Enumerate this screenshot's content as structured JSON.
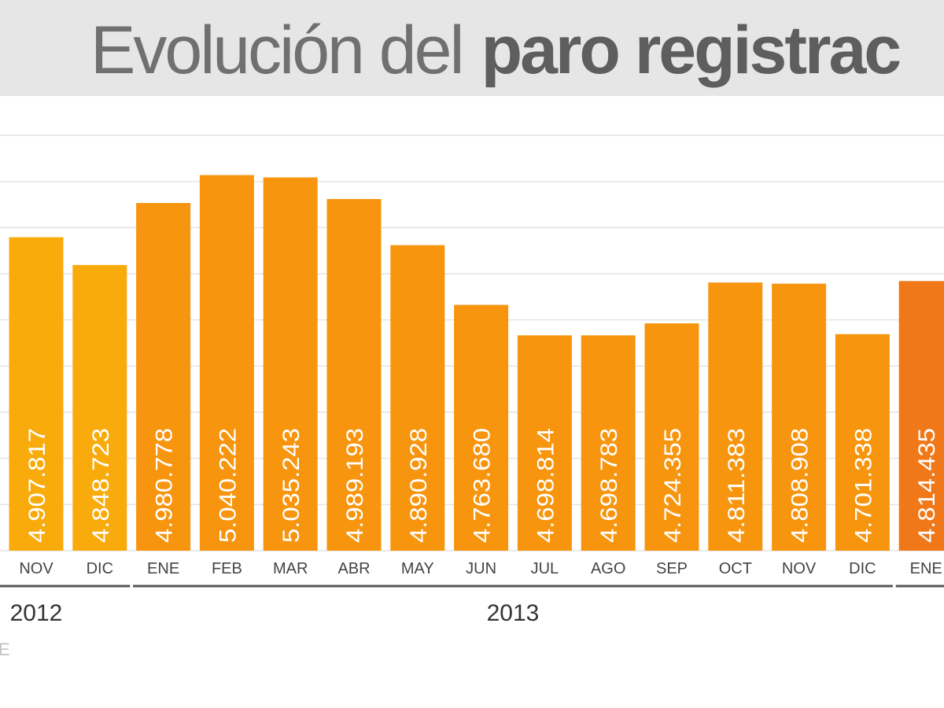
{
  "chart_data": {
    "type": "bar",
    "title": [
      "Evolución del",
      "paro registrac"
    ],
    "categories": [
      "NOV",
      "DIC",
      "ENE",
      "FEB",
      "MAR",
      "ABR",
      "MAY",
      "JUN",
      "JUL",
      "AGO",
      "SEP",
      "OCT",
      "NOV",
      "DIC",
      "ENE"
    ],
    "values": [
      4907817,
      4848723,
      4980778,
      5040222,
      5035243,
      4989193,
      4890928,
      4763680,
      4698814,
      4698783,
      4724355,
      4811383,
      4808908,
      4701338,
      4814435
    ],
    "value_labels": [
      "4.907.817",
      "4.848.723",
      "4.980.778",
      "5.040.222",
      "5.035.243",
      "4.989.193",
      "4.890.928",
      "4.763.680",
      "4.698.814",
      "4.698.783",
      "4.724.355",
      "4.811.383",
      "4.808.908",
      "4.701.338",
      "4.814.435"
    ],
    "colors": [
      "#f9ab0c",
      "#f9ab0c",
      "#f7950e",
      "#f7950e",
      "#f7950e",
      "#f7950e",
      "#f7950e",
      "#f7950e",
      "#f7950e",
      "#f7950e",
      "#f7950e",
      "#f7950e",
      "#f7950e",
      "#f7950e",
      "#f07818"
    ],
    "ylim": [
      4240000,
      5125000
    ],
    "periods": [
      {
        "label": "2012",
        "count": 2
      },
      {
        "label": "2013",
        "count": 12
      },
      {
        "label": null,
        "count": 1
      }
    ],
    "source": "E"
  }
}
